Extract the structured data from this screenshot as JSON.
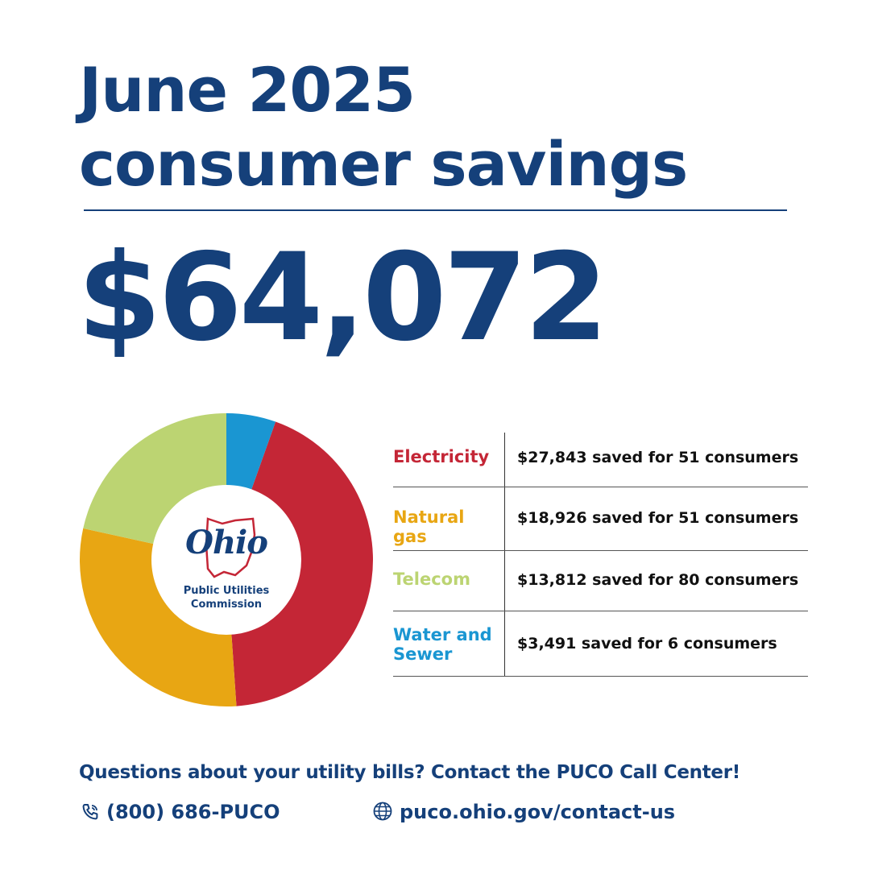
{
  "header": {
    "title_line1": "June 2025",
    "title_line2": "consumer savings",
    "total": "$64,072"
  },
  "logo": {
    "word": "Ohio",
    "line1": "Public Utilities",
    "line2": "Commission"
  },
  "chart_data": {
    "type": "pie",
    "donut": true,
    "categories": [
      "Electricity",
      "Natural gas",
      "Telecom",
      "Water and Sewer"
    ],
    "values": [
      27843,
      18926,
      13812,
      3491
    ],
    "colors": [
      "#c42636",
      "#e8a613",
      "#bcd472",
      "#1a96d2"
    ],
    "rows": [
      {
        "label": "Electricity",
        "detail": "$27,843 saved for 51 consumers",
        "color": "#c42636"
      },
      {
        "label": "Natural gas",
        "detail": "$18,926 saved for 51 consumers",
        "color": "#e8a613"
      },
      {
        "label": "Telecom",
        "detail": "$13,812 saved for 80 consumers",
        "color": "#bcd472"
      },
      {
        "label_lines": [
          "Water and",
          "Sewer"
        ],
        "detail": "$3,491 saved for 6 consumers",
        "color": "#1a96d2"
      }
    ]
  },
  "footer": {
    "question": "Questions about your utility bills? Contact the PUCO Call Center!",
    "phone": "(800) 686-PUCO",
    "website": "puco.ohio.gov/contact-us",
    "phone_icon": "phone-icon",
    "web_icon": "globe-icon"
  },
  "colors": {
    "brand_blue": "#15407a"
  }
}
